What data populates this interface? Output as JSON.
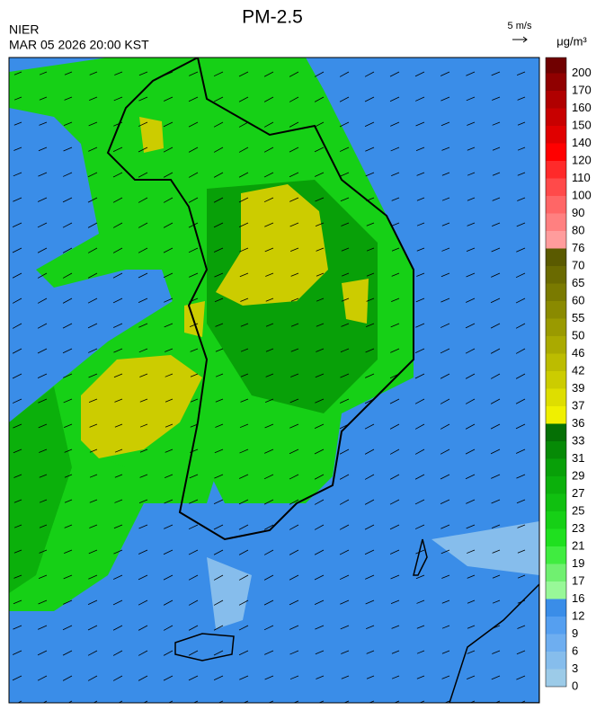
{
  "header": {
    "source": "NIER",
    "datetime": "MAR 05 2026 20:00 KST",
    "title": "PM-2.5",
    "wind_scale": "5 m/s",
    "unit": "μg/m³"
  },
  "colorbar": {
    "levels": [
      0,
      3,
      6,
      9,
      12,
      16,
      17,
      19,
      21,
      23,
      25,
      27,
      29,
      31,
      33,
      36,
      37,
      39,
      42,
      46,
      50,
      55,
      60,
      65,
      70,
      76,
      80,
      90,
      100,
      110,
      120,
      140,
      150,
      160,
      170,
      200
    ],
    "colors": [
      "#9ccbe8",
      "#86bdec",
      "#6eaef0",
      "#559ff0",
      "#3a8de8",
      "#98f898",
      "#70f070",
      "#40ec40",
      "#1fe01f",
      "#16d016",
      "#10c010",
      "#0bb00b",
      "#08a008",
      "#068a06",
      "#057005",
      "#f0f000",
      "#dede00",
      "#cccc00",
      "#bcbc00",
      "#aaaa00",
      "#9a9a00",
      "#8a8a00",
      "#7a7a00",
      "#6a6a00",
      "#5a5a00",
      "#ff9c9c",
      "#ff8080",
      "#ff6666",
      "#ff4a4a",
      "#ff2a2a",
      "#ff0000",
      "#e00000",
      "#c80000",
      "#b00000",
      "#900000",
      "#700000"
    ]
  }
}
